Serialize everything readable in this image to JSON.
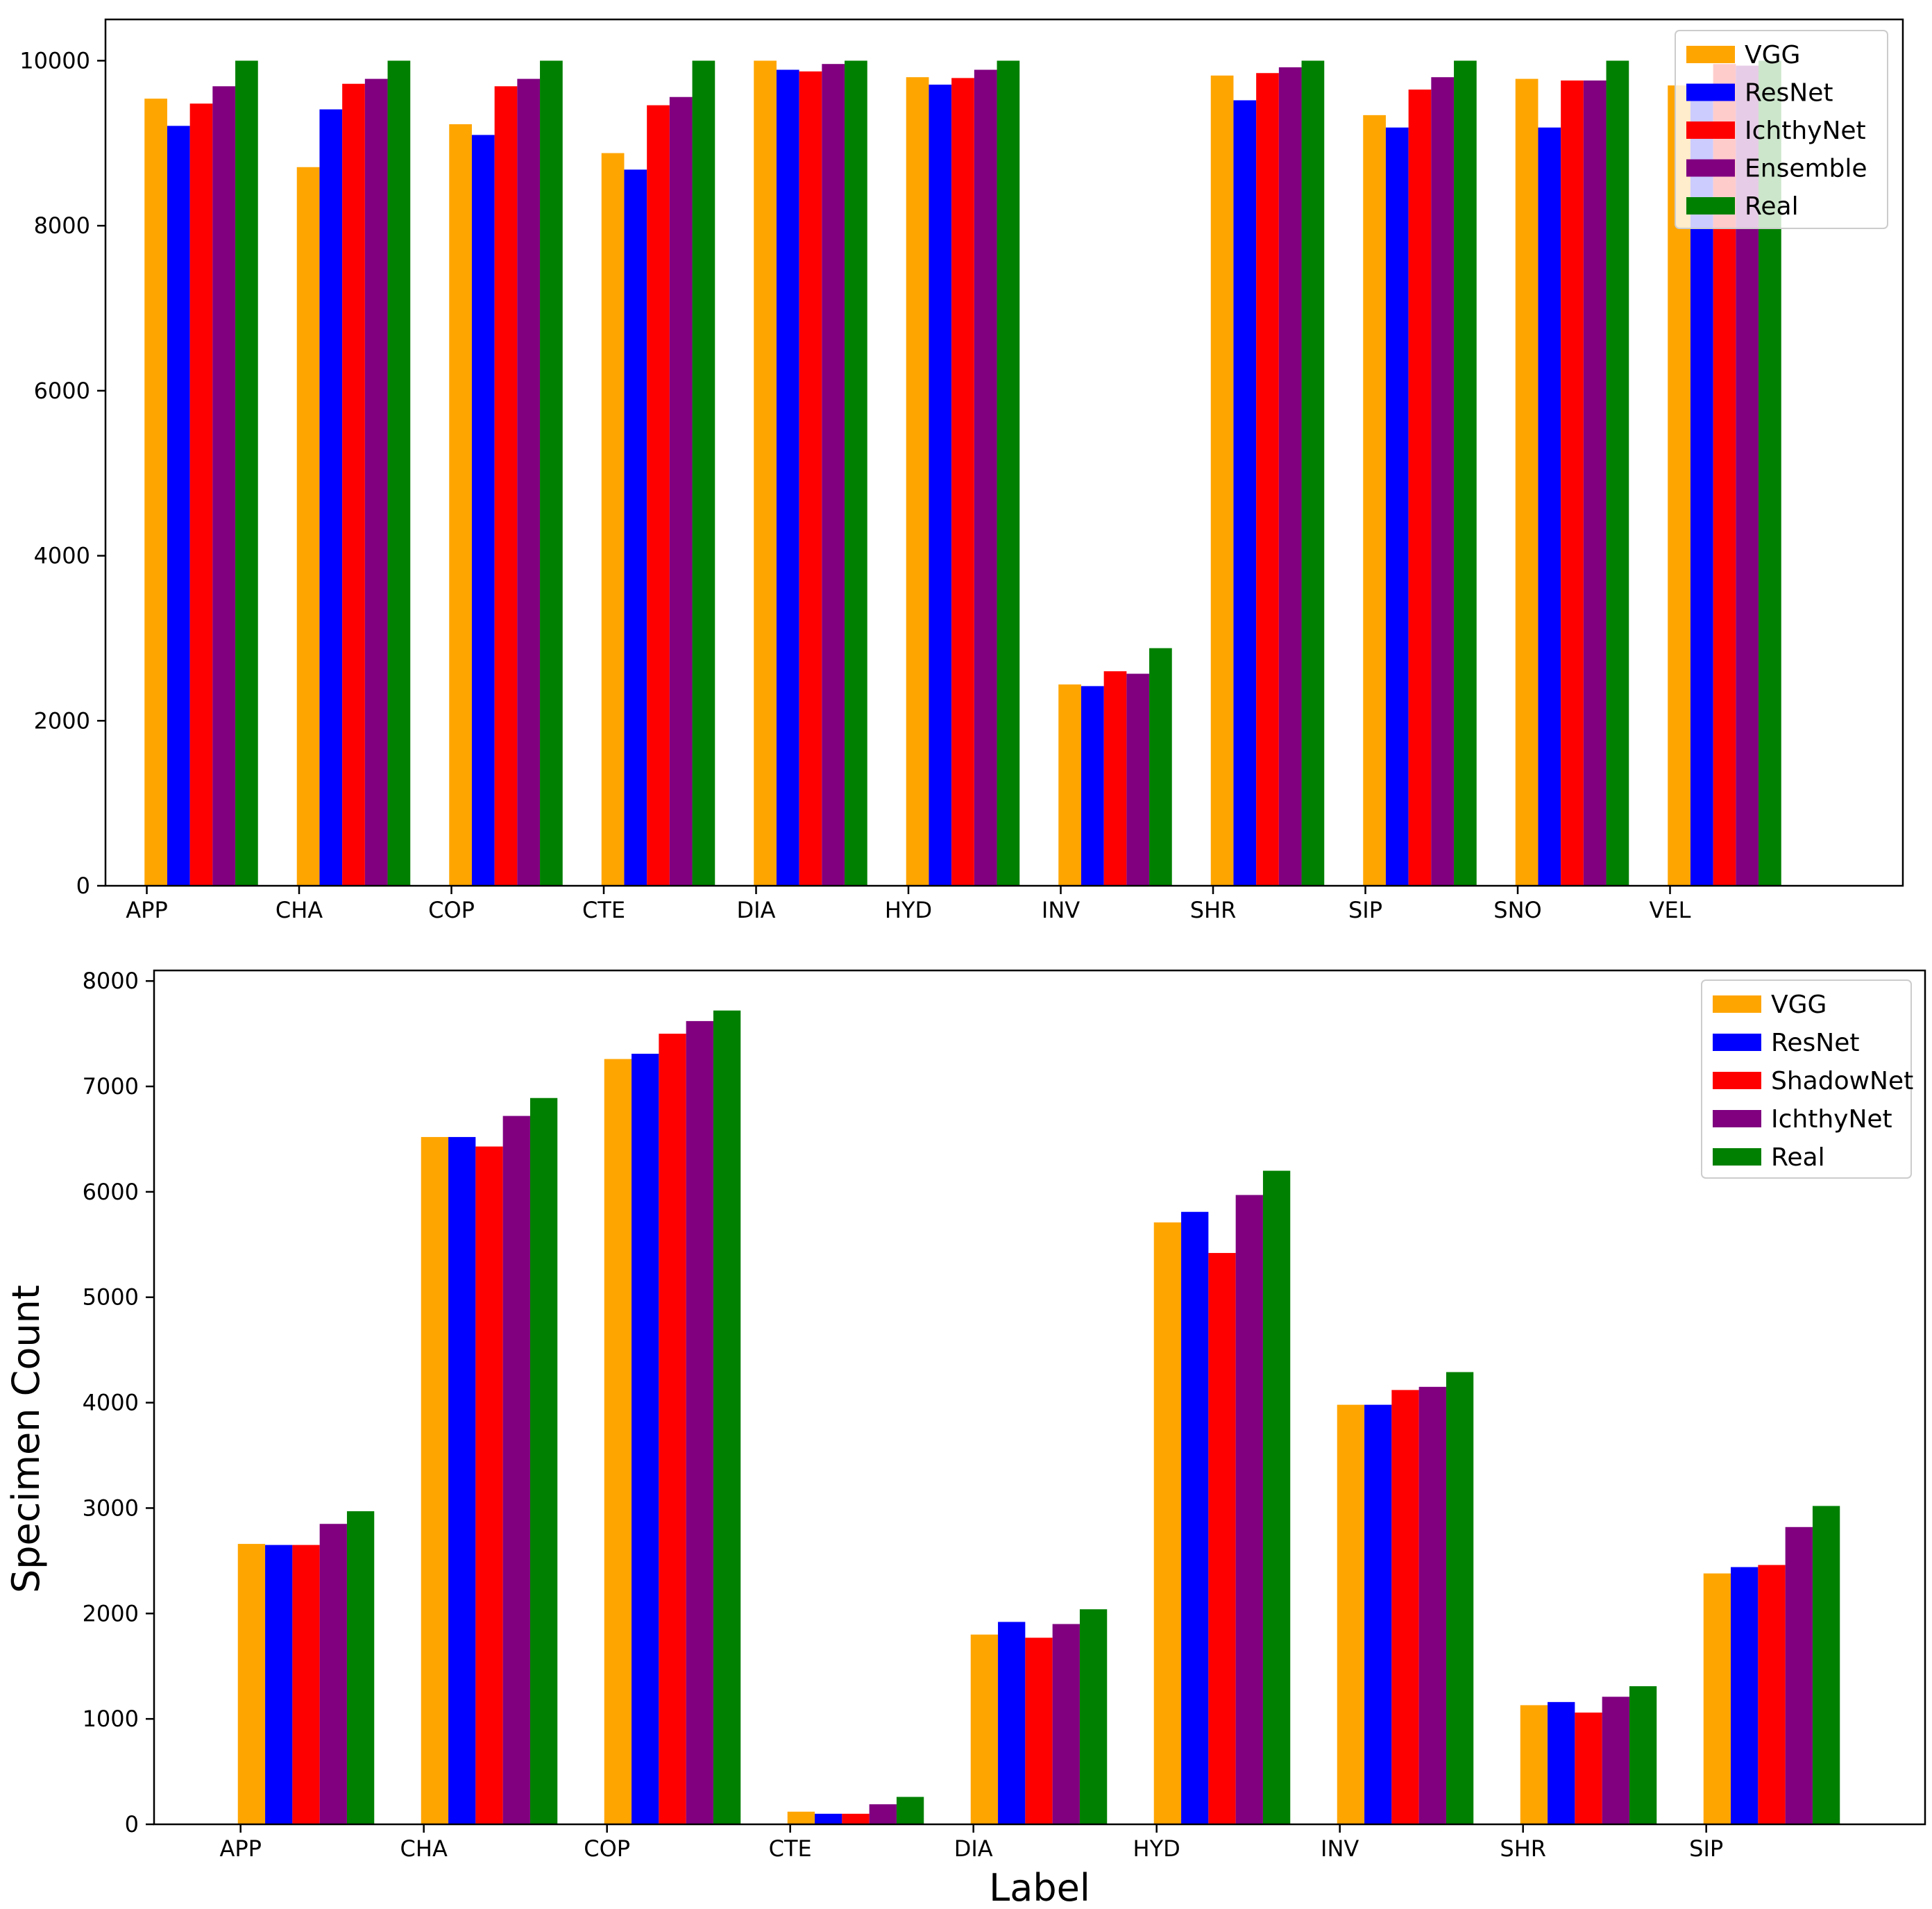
{
  "chart_data": [
    {
      "type": "bar",
      "title": "",
      "xlabel": "",
      "ylabel": "",
      "ylim": [
        0,
        10500
      ],
      "yticks": [
        0,
        2000,
        4000,
        6000,
        8000,
        10000
      ],
      "legend_position": "top-right",
      "categories": [
        "APP",
        "CHA",
        "COP",
        "CTE",
        "DIA",
        "HYD",
        "INV",
        "SHR",
        "SIP",
        "SNO",
        "VEL"
      ],
      "series": [
        {
          "name": "VGG",
          "color": "#ffa500",
          "values": [
            9540,
            8710,
            9230,
            8880,
            10000,
            9800,
            2440,
            9820,
            9340,
            9780,
            9700
          ]
        },
        {
          "name": "ResNet",
          "color": "#0000ff",
          "values": [
            9210,
            9410,
            9100,
            8680,
            9890,
            9710,
            2420,
            9520,
            9190,
            9190,
            9620
          ]
        },
        {
          "name": "IchthyNet",
          "color": "#ff0000",
          "values": [
            9480,
            9720,
            9690,
            9460,
            9870,
            9790,
            2600,
            9850,
            9650,
            9760,
            9960
          ]
        },
        {
          "name": "Ensemble",
          "color": "#800080",
          "values": [
            9690,
            9780,
            9780,
            9560,
            9960,
            9890,
            2570,
            9920,
            9800,
            9760,
            9940
          ]
        },
        {
          "name": "Real",
          "color": "#008000",
          "values": [
            10000,
            10000,
            10000,
            10000,
            10000,
            10000,
            2880,
            10000,
            10000,
            10000,
            10000
          ]
        }
      ]
    },
    {
      "type": "bar",
      "title": "",
      "xlabel": "Label",
      "ylabel": "Specimen Count",
      "ylim": [
        0,
        8100
      ],
      "yticks": [
        0,
        1000,
        2000,
        3000,
        4000,
        5000,
        6000,
        7000,
        8000
      ],
      "legend_position": "top-right",
      "categories": [
        "APP",
        "CHA",
        "COP",
        "CTE",
        "DIA",
        "HYD",
        "INV",
        "SHR",
        "SIP"
      ],
      "series": [
        {
          "name": "VGG",
          "color": "#ffa500",
          "values": [
            2660,
            6520,
            7260,
            120,
            1800,
            5710,
            3980,
            1130,
            2380
          ]
        },
        {
          "name": "ResNet",
          "color": "#0000ff",
          "values": [
            2650,
            6520,
            7310,
            100,
            1920,
            5810,
            3980,
            1160,
            2440
          ]
        },
        {
          "name": "ShadowNet",
          "color": "#ff0000",
          "values": [
            2650,
            6430,
            7500,
            100,
            1770,
            5420,
            4120,
            1060,
            2460
          ]
        },
        {
          "name": "IchthyNet",
          "color": "#800080",
          "values": [
            2850,
            6720,
            7620,
            190,
            1900,
            5970,
            4150,
            1210,
            2820
          ]
        },
        {
          "name": "Real",
          "color": "#008000",
          "values": [
            2970,
            6890,
            7720,
            260,
            2040,
            6200,
            4290,
            1310,
            3020
          ]
        }
      ]
    }
  ]
}
